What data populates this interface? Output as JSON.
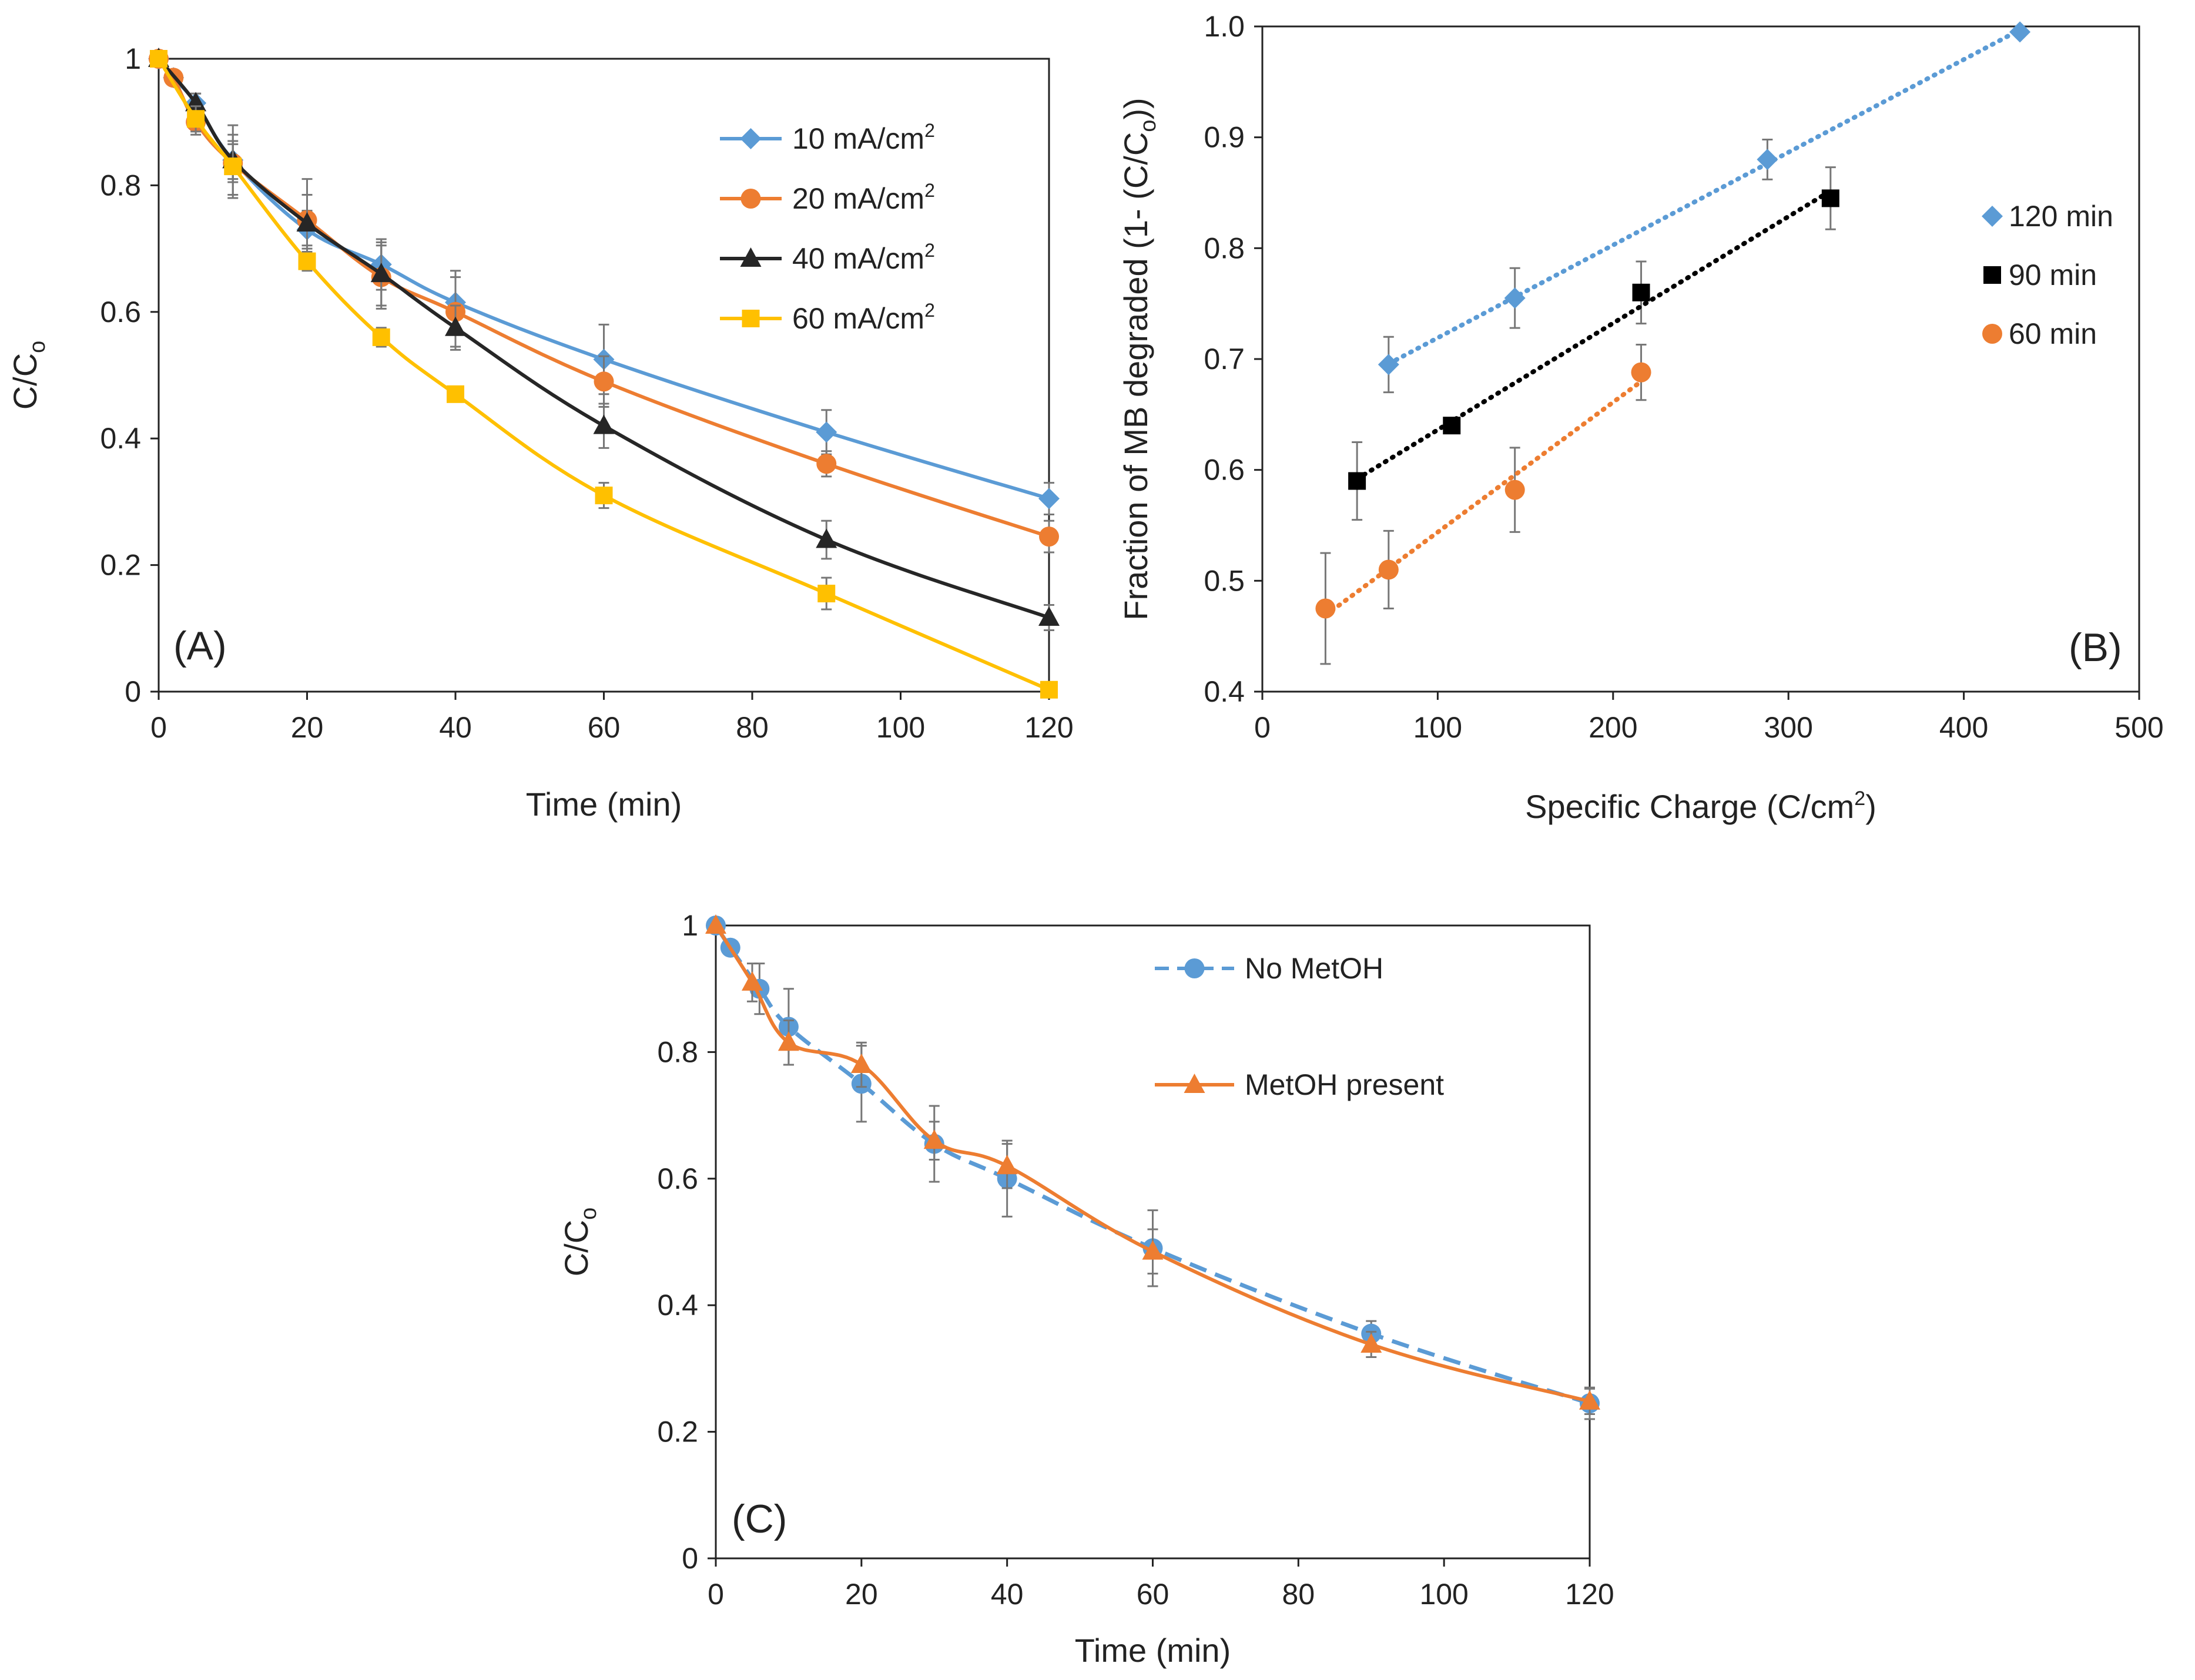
{
  "chart_data": [
    {
      "panel_label": "(A)",
      "type": "line",
      "xlabel": "Time (min)",
      "ylabel": {
        "main": "C/C",
        "sub": "o"
      },
      "xlim": [
        0,
        120
      ],
      "ylim": [
        0,
        1
      ],
      "xticks": [
        0,
        20,
        40,
        60,
        80,
        100,
        120
      ],
      "yticks": [
        0,
        0.2,
        0.4,
        0.6,
        0.8,
        1
      ],
      "yticklabels": [
        "0",
        "0.2",
        "0.4",
        "0.6",
        "0.8",
        "1"
      ],
      "legend_position": "top-right",
      "grid": false,
      "series": [
        {
          "name": "10 mA/cm",
          "sup": "2",
          "color": "#5B9BD5",
          "marker": "diamond",
          "line": "solid",
          "x": [
            0,
            2,
            5,
            10,
            20,
            30,
            40,
            60,
            90,
            120
          ],
          "y": [
            1.0,
            0.97,
            0.93,
            0.84,
            0.73,
            0.675,
            0.615,
            0.525,
            0.41,
            0.305
          ],
          "err": [
            0,
            0.01,
            0.015,
            0.03,
            0.03,
            0.04,
            0.05,
            0.055,
            0.035,
            0.025
          ]
        },
        {
          "name": "20 mA/cm",
          "sup": "2",
          "color": "#ED7D31",
          "marker": "circle",
          "line": "solid",
          "x": [
            0,
            2,
            5,
            10,
            20,
            30,
            40,
            60,
            90,
            120
          ],
          "y": [
            1.0,
            0.97,
            0.9,
            0.835,
            0.745,
            0.655,
            0.6,
            0.49,
            0.36,
            0.245
          ],
          "err": [
            0,
            0.01,
            0.02,
            0.03,
            0.04,
            0.05,
            0.055,
            0.04,
            0.02,
            0.025
          ]
        },
        {
          "name": "40 mA/cm",
          "sup": "2",
          "color": "#262626",
          "marker": "triangle",
          "line": "solid",
          "x": [
            0,
            5,
            10,
            20,
            30,
            40,
            60,
            90,
            120
          ],
          "y": [
            1.0,
            0.93,
            0.84,
            0.74,
            0.66,
            0.575,
            0.42,
            0.24,
            0.117
          ],
          "err": [
            0,
            0.015,
            0.055,
            0.07,
            0.05,
            0.035,
            0.035,
            0.03,
            0.02
          ]
        },
        {
          "name": "60 mA/cm",
          "sup": "2",
          "color": "#FFC000",
          "marker": "square",
          "line": "solid",
          "x": [
            0,
            5,
            10,
            20,
            30,
            40,
            60,
            90,
            120
          ],
          "y": [
            1.0,
            0.905,
            0.83,
            0.68,
            0.56,
            0.47,
            0.31,
            0.155,
            0.003
          ],
          "err": [
            0,
            0.02,
            0.05,
            0.015,
            0.015,
            0.01,
            0.02,
            0.025,
            0.005
          ]
        }
      ]
    },
    {
      "panel_label": "(B)",
      "type": "scatter",
      "xlabel": {
        "main": "Specific Charge  (C/cm",
        "sup": "2",
        "tail": ")"
      },
      "ylabel": {
        "main": "Fraction of MB degraded (1- (C/C",
        "sub": "o",
        "tail": "))"
      },
      "xlim": [
        0,
        500
      ],
      "ylim": [
        0.4,
        1.0
      ],
      "xticks": [
        0,
        100,
        200,
        300,
        400,
        500
      ],
      "yticks": [
        0.4,
        0.5,
        0.6,
        0.7,
        0.8,
        0.9,
        1.0
      ],
      "yticklabels": [
        "0.4",
        "0.5",
        "0.6",
        "0.7",
        "0.8",
        "0.9",
        "1.0"
      ],
      "legend_position": "right",
      "grid": false,
      "series": [
        {
          "name": "120 min",
          "color": "#5B9BD5",
          "marker": "diamond",
          "trendline": "dotted",
          "x": [
            72,
            144,
            288,
            432
          ],
          "y": [
            0.695,
            0.755,
            0.88,
            0.995
          ],
          "err": [
            0.025,
            0.027,
            0.018,
            0
          ]
        },
        {
          "name": "90 min",
          "color": "#000000",
          "marker": "square",
          "trendline": "dotted",
          "x": [
            54,
            108,
            216,
            324
          ],
          "y": [
            0.59,
            0.64,
            0.76,
            0.845
          ],
          "err": [
            0.035,
            0,
            0.028,
            0.028
          ]
        },
        {
          "name": "60 min",
          "color": "#ED7D31",
          "marker": "circle",
          "trendline": "dotted",
          "x": [
            36,
            72,
            144,
            216
          ],
          "y": [
            0.475,
            0.51,
            0.582,
            0.688
          ],
          "err": [
            0.05,
            0.035,
            0.038,
            0.025
          ]
        }
      ]
    },
    {
      "panel_label": "(C)",
      "type": "line",
      "xlabel": "Time (min)",
      "ylabel": {
        "main": "C/C",
        "sub": "o"
      },
      "xlim": [
        0,
        120
      ],
      "ylim": [
        0,
        1
      ],
      "xticks": [
        0,
        20,
        40,
        60,
        80,
        100,
        120
      ],
      "yticks": [
        0,
        0.2,
        0.4,
        0.6,
        0.8,
        1
      ],
      "yticklabels": [
        "0",
        "0.2",
        "0.4",
        "0.6",
        "0.8",
        "1"
      ],
      "legend_position": "top-right",
      "grid": false,
      "series": [
        {
          "name": "No MetOH",
          "color": "#5B9BD5",
          "marker": "circle",
          "line": "dashed",
          "x": [
            0,
            2,
            6,
            10,
            20,
            30,
            40,
            60,
            90,
            120
          ],
          "y": [
            1.0,
            0.965,
            0.9,
            0.84,
            0.75,
            0.655,
            0.6,
            0.49,
            0.355,
            0.245
          ],
          "err": [
            0,
            0.01,
            0.04,
            0.06,
            0.06,
            0.06,
            0.06,
            0.06,
            0.02,
            0.025
          ]
        },
        {
          "name": "MetOH present",
          "color": "#ED7D31",
          "marker": "triangle",
          "line": "solid",
          "x": [
            0,
            5,
            10,
            20,
            30,
            40,
            60,
            90,
            120
          ],
          "y": [
            1.0,
            0.91,
            0.815,
            0.78,
            0.66,
            0.62,
            0.485,
            0.338,
            0.248
          ],
          "err": [
            0,
            0.03,
            0.035,
            0.035,
            0.03,
            0.035,
            0.035,
            0.02,
            0.02
          ]
        }
      ]
    }
  ]
}
